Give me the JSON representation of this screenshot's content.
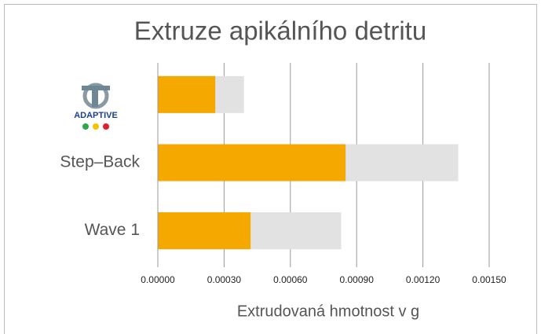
{
  "chart_data": {
    "type": "bar",
    "orientation": "horizontal",
    "title": "Extruze apikálního detritu",
    "x_label": "Extrudovaná hmotnost v g",
    "categories": [
      "ADAPTIVE",
      "Step–Back",
      "Wave 1"
    ],
    "series": [
      {
        "color": "#e2e2e2",
        "values": [
          0.00039,
          0.00136,
          0.00083
        ]
      },
      {
        "color": "#f5a800",
        "values": [
          0.00026,
          0.00085,
          0.00042
        ]
      }
    ],
    "xlim": [
      0,
      0.0015
    ],
    "xticks": [
      {
        "value": 0,
        "label": "0.00000"
      },
      {
        "value": 0.0003,
        "label": "0.00030"
      },
      {
        "value": 0.0006,
        "label": "0.00060"
      },
      {
        "value": 0.0009,
        "label": "0.00090"
      },
      {
        "value": 0.0012,
        "label": "0.00120"
      },
      {
        "value": 0.0015,
        "label": "0.00150"
      }
    ],
    "grid": true
  }
}
